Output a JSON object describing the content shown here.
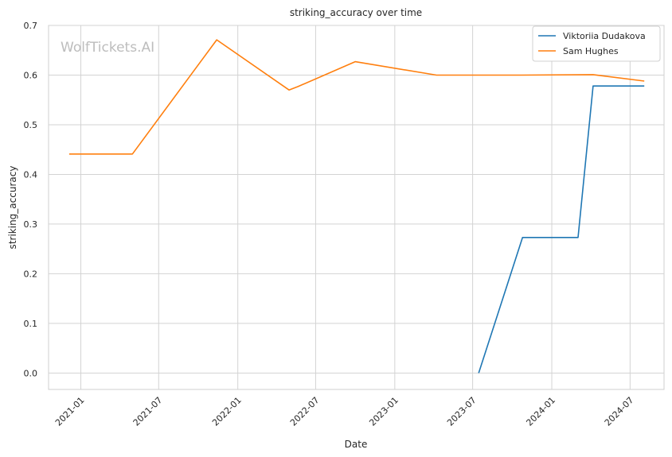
{
  "chart_data": {
    "type": "line",
    "title": "striking_accuracy over time",
    "xlabel": "Date",
    "ylabel": "striking_accuracy",
    "watermark": "WolfTickets.AI",
    "x_ticks": [
      "2021-01",
      "2021-07",
      "2022-01",
      "2022-07",
      "2023-01",
      "2023-07",
      "2024-01",
      "2024-07"
    ],
    "y_ticks": [
      "0.0",
      "0.1",
      "0.2",
      "0.3",
      "0.4",
      "0.5",
      "0.6",
      "0.7"
    ],
    "xlim": [
      "2020-10-18",
      "2024-09-18"
    ],
    "ylim": [
      -0.033,
      0.7
    ],
    "grid": true,
    "legend_position": "top-right",
    "series": [
      {
        "name": "Viktoriia Dudakova",
        "color": "#1f77b4",
        "points": [
          {
            "x": "2023-07-15",
            "y": 0.0
          },
          {
            "x": "2023-10-25",
            "y": 0.273
          },
          {
            "x": "2024-03-02",
            "y": 0.273
          },
          {
            "x": "2024-04-06",
            "y": 0.578
          },
          {
            "x": "2024-08-03",
            "y": 0.578
          }
        ]
      },
      {
        "name": "Sam Hughes",
        "color": "#ff7f0e",
        "points": [
          {
            "x": "2020-12-05",
            "y": 0.441
          },
          {
            "x": "2021-05-01",
            "y": 0.441
          },
          {
            "x": "2021-11-13",
            "y": 0.671
          },
          {
            "x": "2022-04-30",
            "y": 0.57
          },
          {
            "x": "2022-05-21",
            "y": 0.577
          },
          {
            "x": "2022-10-01",
            "y": 0.627
          },
          {
            "x": "2023-04-08",
            "y": 0.6
          },
          {
            "x": "2023-10-21",
            "y": 0.6
          },
          {
            "x": "2024-04-06",
            "y": 0.601
          },
          {
            "x": "2024-08-03",
            "y": 0.588
          }
        ]
      }
    ]
  }
}
